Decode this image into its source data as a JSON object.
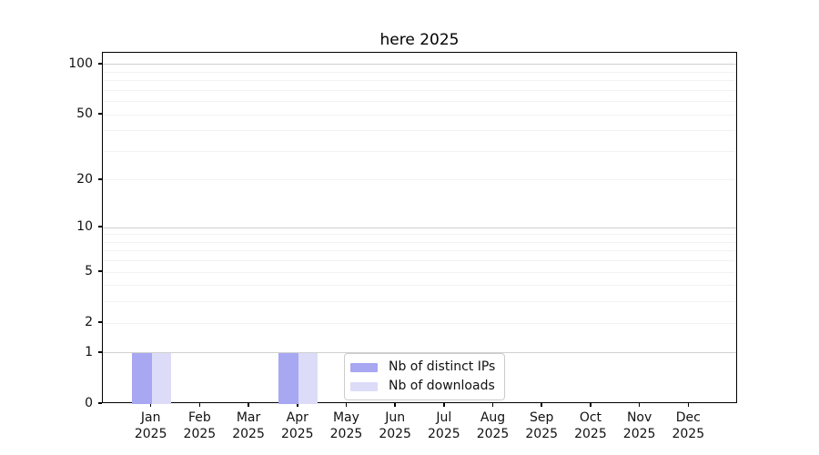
{
  "chart_data": {
    "type": "bar",
    "title": "here 2025",
    "x_categories": [
      "Jan",
      "Feb",
      "Mar",
      "Apr",
      "May",
      "Jun",
      "Jul",
      "Aug",
      "Sep",
      "Oct",
      "Nov",
      "Dec"
    ],
    "x_year_label": "2025",
    "series": [
      {
        "name": "Nb of distinct IPs",
        "color": "#a7a7f2",
        "values": [
          1,
          0,
          0,
          1,
          0,
          0,
          0,
          0,
          0,
          0,
          0,
          0
        ]
      },
      {
        "name": "Nb of downloads",
        "color": "#dcdcf9",
        "values": [
          1,
          0,
          0,
          1,
          0,
          0,
          0,
          0,
          0,
          0,
          0,
          0
        ]
      }
    ],
    "yscale": "log1p",
    "ylim": [
      0,
      117.6
    ],
    "ytick_values": [
      0,
      1,
      2,
      5,
      10,
      20,
      50,
      100
    ],
    "grid": "horizontal",
    "legend_position": "lower-center",
    "colors": {
      "grid_major": "#d0d0d0",
      "grid_minor": "#f2f2f2",
      "axis": "#000000",
      "text": "#111111",
      "legend_border": "#cccccc",
      "background": "#ffffff"
    }
  }
}
